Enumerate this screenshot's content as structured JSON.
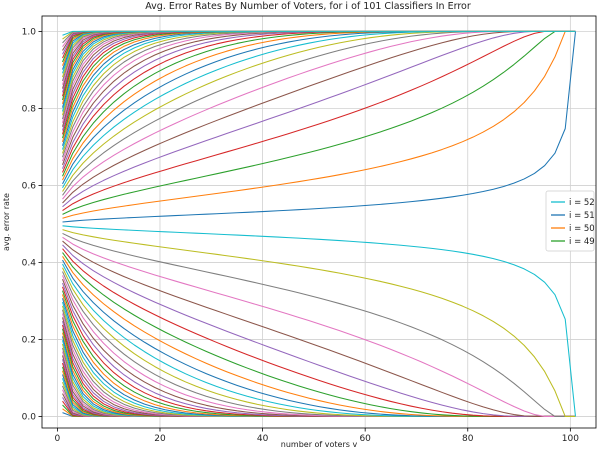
{
  "chart_data": {
    "type": "line",
    "title": "Avg. Error Rates By Number of Voters, for i of 101 Classifiers In Error",
    "xlabel": "number of voters v",
    "ylabel": "avg. error rate",
    "xlim": [
      -3,
      105
    ],
    "ylim": [
      -0.03,
      1.04
    ],
    "xticks": [
      0,
      20,
      40,
      60,
      80,
      100
    ],
    "yticks": [
      0.0,
      0.2,
      0.4,
      0.6,
      0.8,
      1.0
    ],
    "ytick_labels": [
      "0.0",
      "0.2",
      "0.4",
      "0.6",
      "0.8",
      "1.0"
    ],
    "grid": true,
    "legend_placement": "center-right",
    "n_classifiers": 101,
    "x": [
      1,
      3,
      5,
      7,
      9,
      11,
      13,
      15,
      17,
      19,
      21,
      23,
      25,
      27,
      29,
      31,
      33,
      35,
      37,
      39,
      41,
      43,
      45,
      47,
      49,
      51,
      53,
      55,
      57,
      59,
      61,
      63,
      65,
      67,
      69,
      71,
      73,
      75,
      77,
      79,
      81,
      83,
      85,
      87,
      89,
      91,
      93,
      95,
      97,
      99,
      101
    ],
    "series_i_values": [
      1,
      2,
      3,
      4,
      5,
      6,
      7,
      8,
      9,
      10,
      11,
      12,
      13,
      14,
      15,
      16,
      17,
      18,
      19,
      20,
      21,
      22,
      23,
      24,
      25,
      26,
      27,
      28,
      29,
      30,
      31,
      32,
      33,
      34,
      35,
      36,
      37,
      38,
      39,
      40,
      41,
      42,
      43,
      44,
      45,
      46,
      47,
      48,
      49,
      50,
      51,
      52,
      53,
      54,
      55,
      56,
      57,
      58,
      59,
      60,
      61,
      62,
      63,
      64,
      65,
      66,
      67,
      68,
      69,
      70,
      71,
      72,
      73,
      74,
      75,
      76,
      77,
      78,
      79,
      80,
      81,
      82,
      83,
      84,
      85,
      86,
      87,
      88,
      89,
      90,
      91,
      92,
      93,
      94,
      95,
      96,
      97,
      98,
      99,
      100
    ],
    "legend": [
      {
        "label": "i = 52",
        "color": "#17becf"
      },
      {
        "label": "i = 51",
        "color": "#1f77b4"
      },
      {
        "label": "i = 50",
        "color": "#ff7f0e"
      },
      {
        "label": "i = 49",
        "color": "#2ca02c"
      }
    ],
    "palette": [
      "#1f77b4",
      "#ff7f0e",
      "#2ca02c",
      "#d62728",
      "#9467bd",
      "#8c564b",
      "#e377c2",
      "#7f7f7f",
      "#bcbd22",
      "#17becf"
    ]
  }
}
